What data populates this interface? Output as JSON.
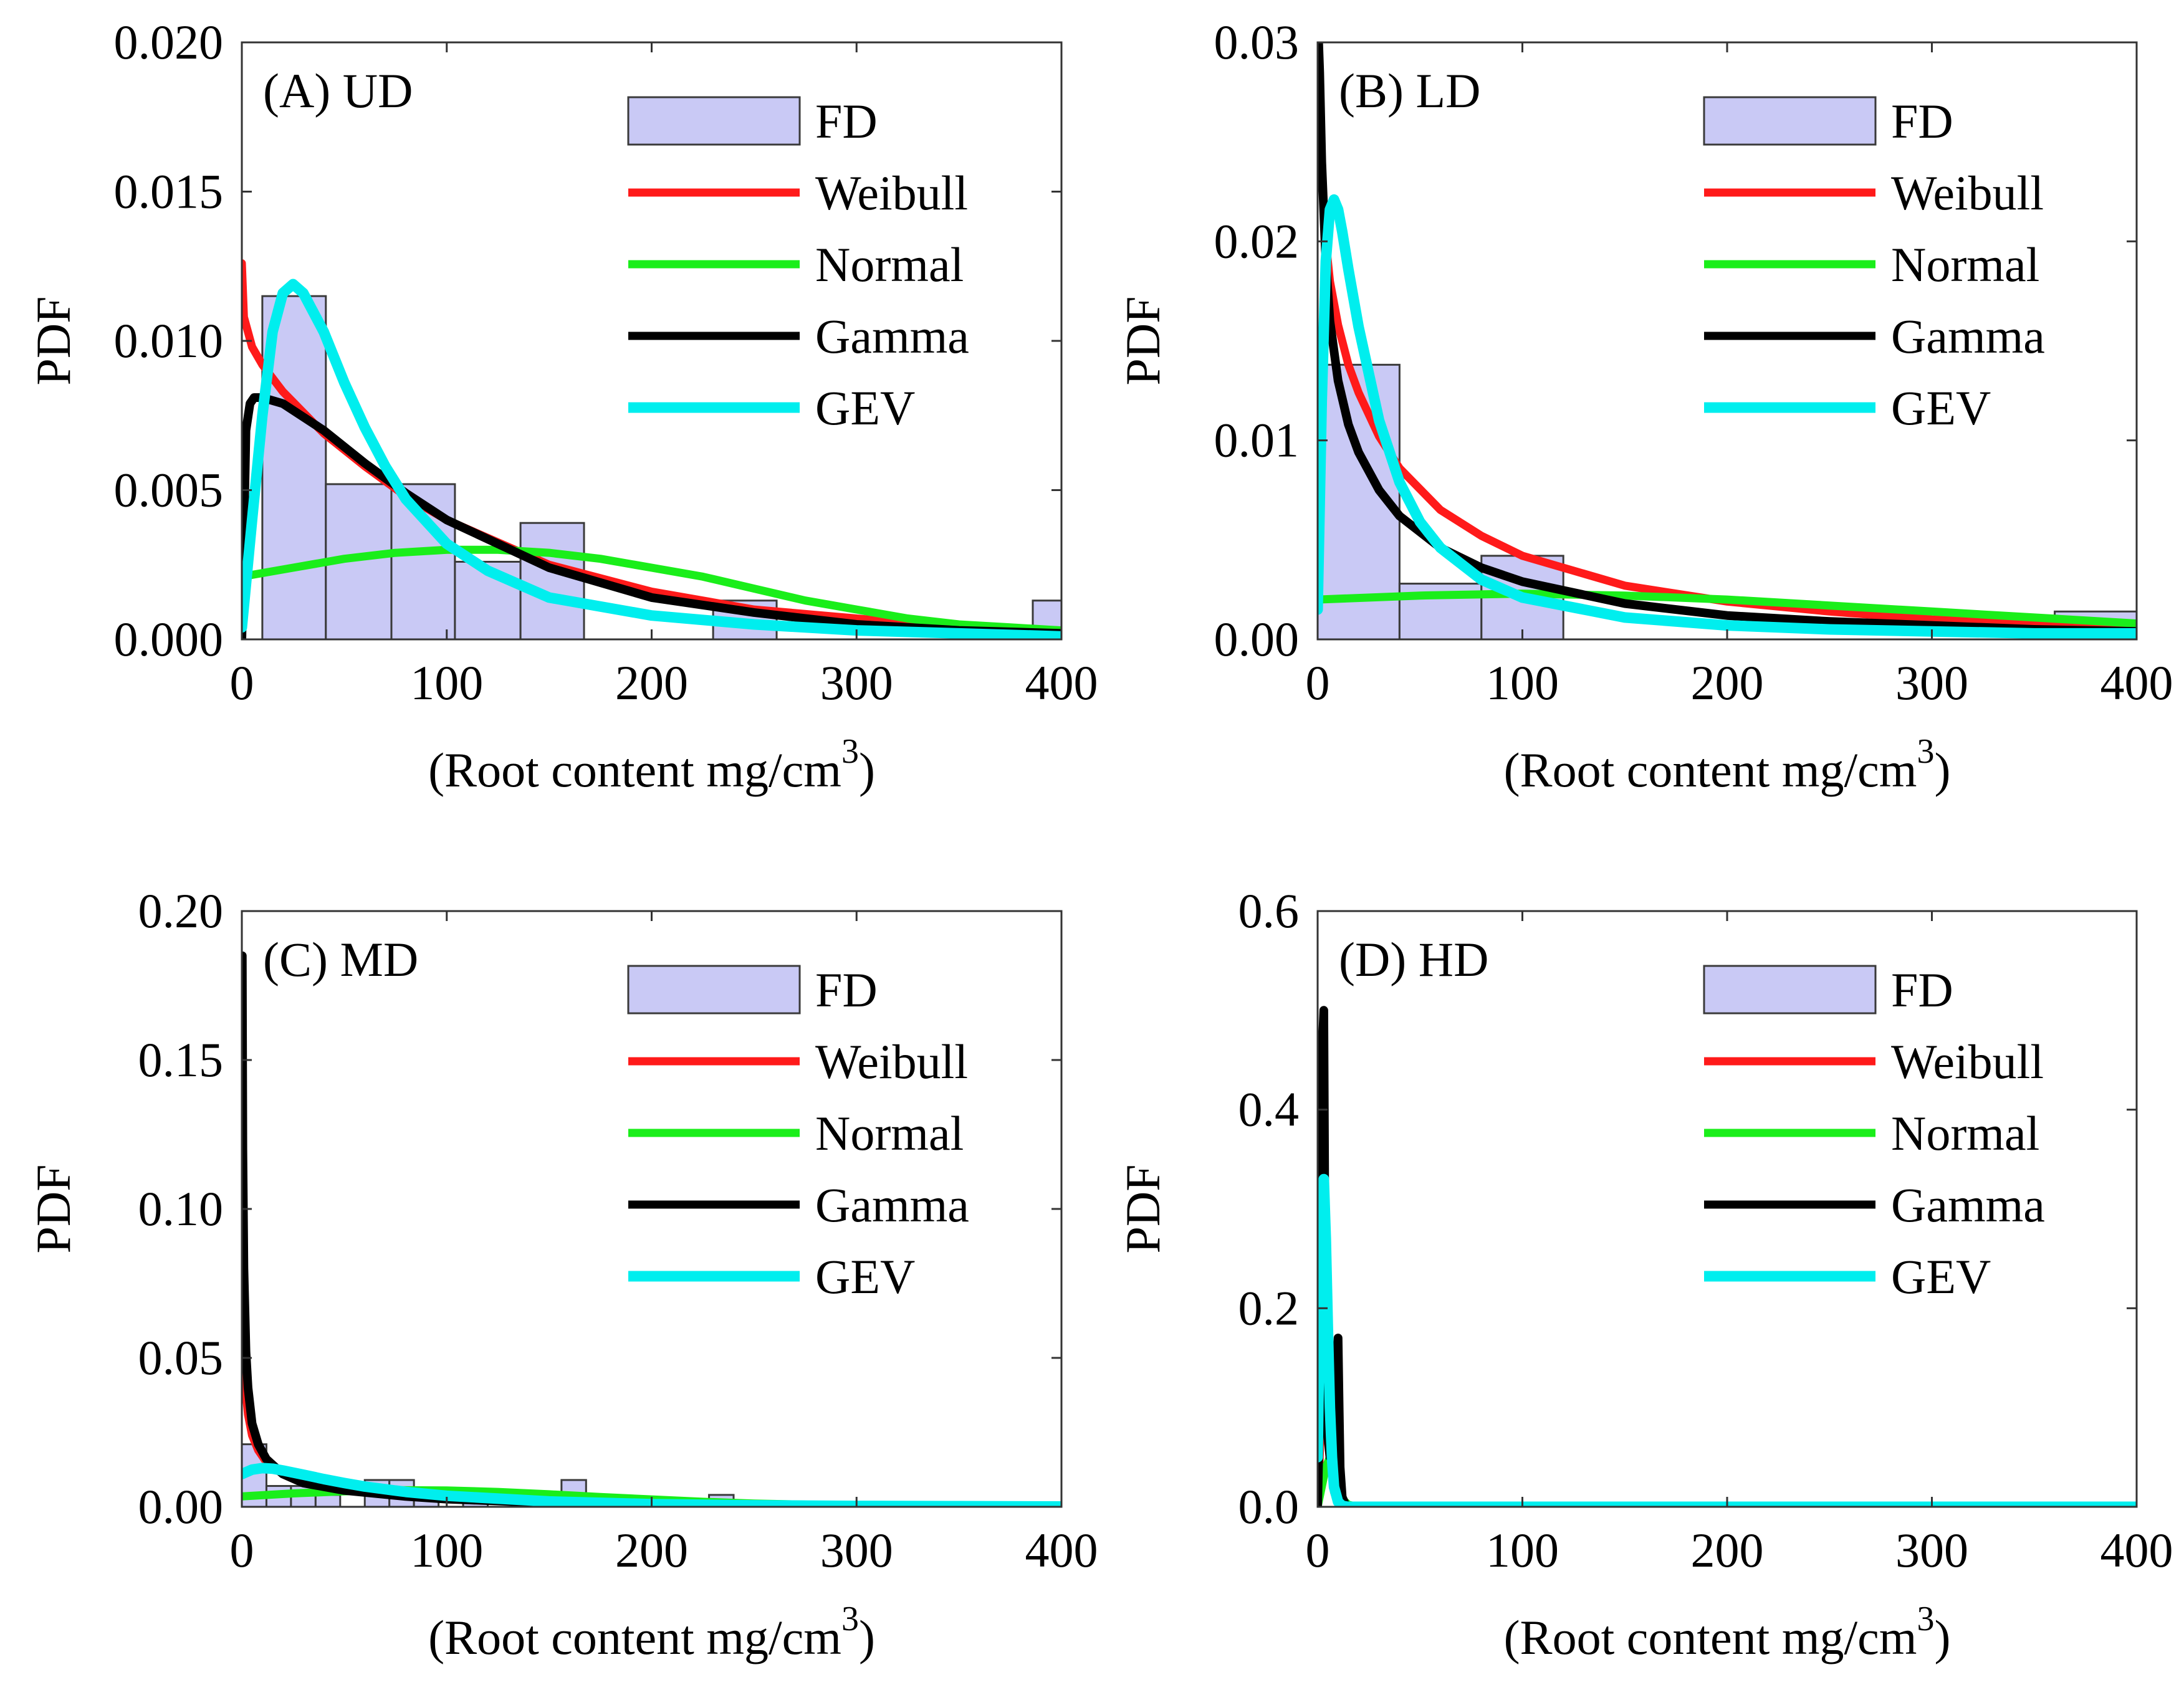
{
  "figure": {
    "legend_labels": [
      "FD",
      "Weibull",
      "Normal",
      "Gamma",
      "GEV"
    ],
    "colors": {
      "FD_fill": "#c9c9f5",
      "FD_edge": "#3a3a3a",
      "Weibull": "#ff1a1a",
      "Normal": "#1aee1a",
      "Gamma": "#000000",
      "GEV": "#00eeee"
    }
  },
  "chart_data": [
    {
      "type": "bar",
      "panel": "(A) UD",
      "title": "(A) UD",
      "xlabel": "(Root content mg/cm",
      "xlabel_superscript": "3",
      "xlabel_close": ")",
      "ylabel": "PDF",
      "xlim": [
        0,
        400
      ],
      "ylim": [
        0,
        0.02
      ],
      "xticks": [
        0,
        100,
        200,
        300,
        400
      ],
      "xtick_labels": [
        "0",
        "100",
        "200",
        "300",
        "400"
      ],
      "yticks": [
        0,
        0.005,
        0.01,
        0.015,
        0.02
      ],
      "ytick_labels": [
        "0.000",
        "0.005",
        "0.010",
        "0.015",
        "0.020"
      ],
      "grid": false,
      "legend_position": "top-right",
      "histogram": {
        "name": "FD",
        "bins": [
          [
            10,
            41,
            0.0115
          ],
          [
            41,
            73,
            0.0052
          ],
          [
            73,
            104,
            0.0052
          ],
          [
            104,
            136,
            0.0026
          ],
          [
            136,
            167,
            0.0039
          ],
          [
            167,
            198,
            0.0
          ],
          [
            198,
            230,
            0.0
          ],
          [
            230,
            261,
            0.0013
          ],
          [
            261,
            292,
            0.0
          ],
          [
            292,
            324,
            0.0
          ],
          [
            324,
            355,
            0.0
          ],
          [
            355,
            386,
            0.0
          ],
          [
            386,
            418,
            0.0013
          ]
        ]
      },
      "series": [
        {
          "name": "Weibull",
          "x": [
            0,
            1,
            5,
            10,
            20,
            40,
            60,
            80,
            100,
            150,
            200,
            250,
            300,
            350,
            400
          ],
          "y": [
            0.0126,
            0.0108,
            0.0098,
            0.0092,
            0.0083,
            0.0069,
            0.0058,
            0.0048,
            0.004,
            0.0025,
            0.0016,
            0.001,
            0.0007,
            0.0004,
            0.0003
          ]
        },
        {
          "name": "Normal",
          "x": [
            0,
            25,
            50,
            75,
            100,
            125,
            150,
            175,
            200,
            225,
            250,
            275,
            300,
            325,
            350,
            375,
            400
          ],
          "y": [
            0.0021,
            0.0024,
            0.0027,
            0.0029,
            0.003,
            0.003,
            0.0029,
            0.0027,
            0.0024,
            0.0021,
            0.0017,
            0.0013,
            0.001,
            0.0007,
            0.0005,
            0.0004,
            0.0003
          ]
        },
        {
          "name": "Gamma",
          "x": [
            0,
            2,
            4,
            6,
            10,
            20,
            40,
            60,
            80,
            100,
            150,
            200,
            250,
            300,
            350,
            400
          ],
          "y": [
            0.0,
            0.007,
            0.0079,
            0.0081,
            0.0081,
            0.0079,
            0.007,
            0.0059,
            0.0049,
            0.004,
            0.0024,
            0.0014,
            0.0009,
            0.0005,
            0.0003,
            0.0002
          ]
        },
        {
          "name": "GEV",
          "x": [
            0,
            5,
            10,
            15,
            20,
            25,
            30,
            40,
            50,
            60,
            70,
            80,
            100,
            120,
            150,
            200,
            250,
            300,
            350,
            400
          ],
          "y": [
            0.0004,
            0.004,
            0.0075,
            0.0103,
            0.0116,
            0.0119,
            0.0116,
            0.0103,
            0.0086,
            0.0071,
            0.0058,
            0.0047,
            0.0032,
            0.0023,
            0.0014,
            0.0008,
            0.0005,
            0.0003,
            0.0002,
            0.0001
          ]
        }
      ]
    },
    {
      "type": "bar",
      "panel": "(B) LD",
      "title": "(B) LD",
      "xlabel": "(Root content mg/cm",
      "xlabel_superscript": "3",
      "xlabel_close": ")",
      "ylabel": "PDF",
      "xlim": [
        0,
        400
      ],
      "ylim": [
        0,
        0.03
      ],
      "xticks": [
        0,
        100,
        200,
        300,
        400
      ],
      "xtick_labels": [
        "0",
        "100",
        "200",
        "300",
        "400"
      ],
      "yticks": [
        0,
        0.01,
        0.02,
        0.03
      ],
      "ytick_labels": [
        "0.00",
        "0.01",
        "0.02",
        "0.03"
      ],
      "grid": false,
      "legend_position": "top-right",
      "histogram": {
        "name": "FD",
        "bins": [
          [
            0,
            40,
            0.0138
          ],
          [
            40,
            80,
            0.0028
          ],
          [
            80,
            120,
            0.0042
          ],
          [
            120,
            160,
            0.0
          ],
          [
            160,
            200,
            0.0
          ],
          [
            200,
            240,
            0.0
          ],
          [
            240,
            280,
            0.0
          ],
          [
            280,
            320,
            0.0
          ],
          [
            320,
            360,
            0.0
          ],
          [
            360,
            400,
            0.0014
          ]
        ]
      },
      "series": [
        {
          "name": "Weibull",
          "x": [
            0.5,
            1,
            2,
            4,
            6,
            10,
            15,
            20,
            30,
            40,
            60,
            80,
            100,
            150,
            200,
            250,
            300,
            350,
            400
          ],
          "y": [
            0.03,
            0.027,
            0.0235,
            0.02,
            0.018,
            0.0158,
            0.0138,
            0.0124,
            0.0102,
            0.0086,
            0.0065,
            0.0052,
            0.0042,
            0.0027,
            0.0019,
            0.0014,
            0.001,
            0.0008,
            0.0006
          ]
        },
        {
          "name": "Normal",
          "x": [
            0,
            50,
            100,
            150,
            200,
            250,
            300,
            350,
            400
          ],
          "y": [
            0.002,
            0.0022,
            0.0023,
            0.0022,
            0.002,
            0.0017,
            0.0014,
            0.0011,
            0.0008
          ]
        },
        {
          "name": "Gamma",
          "x": [
            0.5,
            1,
            2,
            4,
            6,
            10,
            15,
            20,
            30,
            40,
            60,
            80,
            100,
            150,
            200,
            250,
            300,
            350,
            400
          ],
          "y": [
            0.03,
            0.0285,
            0.024,
            0.019,
            0.016,
            0.013,
            0.0108,
            0.0094,
            0.0075,
            0.0062,
            0.0046,
            0.0036,
            0.0029,
            0.0018,
            0.0012,
            0.0009,
            0.0007,
            0.0005,
            0.0004
          ]
        },
        {
          "name": "GEV",
          "x": [
            0,
            2,
            4,
            6,
            8,
            10,
            12,
            15,
            20,
            30,
            40,
            50,
            60,
            80,
            100,
            150,
            200,
            250,
            300,
            350,
            400
          ],
          "y": [
            0.0015,
            0.012,
            0.019,
            0.0216,
            0.0221,
            0.0216,
            0.0205,
            0.0186,
            0.0157,
            0.011,
            0.0079,
            0.0059,
            0.0046,
            0.003,
            0.0021,
            0.0011,
            0.0007,
            0.0005,
            0.0004,
            0.0003,
            0.0003
          ]
        }
      ]
    },
    {
      "type": "bar",
      "panel": "(C) MD",
      "title": "(C) MD",
      "xlabel": "(Root content mg/cm",
      "xlabel_superscript": "3",
      "xlabel_close": ")",
      "ylabel": "PDF",
      "xlim": [
        0,
        400
      ],
      "ylim": [
        0,
        0.2
      ],
      "xticks": [
        0,
        100,
        200,
        300,
        400
      ],
      "xtick_labels": [
        "0",
        "100",
        "200",
        "300",
        "400"
      ],
      "yticks": [
        0,
        0.05,
        0.1,
        0.15,
        0.2
      ],
      "ytick_labels": [
        "0.00",
        "0.05",
        "0.10",
        "0.15",
        "0.20"
      ],
      "grid": false,
      "legend_position": "top-right",
      "histogram": {
        "name": "FD",
        "bins": [
          [
            0,
            12,
            0.021
          ],
          [
            12,
            24,
            0.007
          ],
          [
            24,
            36,
            0.007
          ],
          [
            36,
            48,
            0.004
          ],
          [
            60,
            72,
            0.009
          ],
          [
            72,
            84,
            0.009
          ],
          [
            84,
            96,
            0.004
          ],
          [
            108,
            120,
            0.004
          ],
          [
            156,
            168,
            0.009
          ],
          [
            228,
            240,
            0.004
          ]
        ]
      },
      "series": [
        {
          "name": "Weibull",
          "x": [
            0.2,
            0.5,
            1,
            2,
            3,
            5,
            8,
            12,
            20,
            30,
            50,
            80,
            100,
            150,
            200,
            250,
            300,
            350,
            400
          ],
          "y": [
            0.095,
            0.07,
            0.052,
            0.038,
            0.031,
            0.024,
            0.019,
            0.015,
            0.011,
            0.009,
            0.006,
            0.004,
            0.003,
            0.0015,
            0.0008,
            0.0004,
            0.0002,
            0.0001,
            0.0001
          ]
        },
        {
          "name": "Normal",
          "x": [
            0,
            25,
            50,
            75,
            100,
            125,
            150,
            175,
            200,
            225,
            250,
            300,
            350,
            400
          ],
          "y": [
            0.0035,
            0.0045,
            0.0052,
            0.0056,
            0.0055,
            0.005,
            0.0042,
            0.0033,
            0.0025,
            0.0017,
            0.0011,
            0.0004,
            0.0001,
            0.0
          ]
        },
        {
          "name": "Gamma",
          "x": [
            0.2,
            0.5,
            1,
            2,
            3,
            5,
            8,
            12,
            20,
            30,
            50,
            80,
            100,
            150,
            200,
            250,
            300,
            350,
            400
          ],
          "y": [
            0.185,
            0.12,
            0.08,
            0.052,
            0.04,
            0.028,
            0.021,
            0.016,
            0.011,
            0.008,
            0.0055,
            0.0035,
            0.0026,
            0.0013,
            0.0007,
            0.0004,
            0.0002,
            0.0001,
            0.0001
          ]
        },
        {
          "name": "GEV",
          "x": [
            0,
            5,
            10,
            15,
            20,
            30,
            40,
            50,
            60,
            80,
            100,
            150,
            200,
            250,
            300,
            350,
            400
          ],
          "y": [
            0.011,
            0.0125,
            0.013,
            0.0128,
            0.0122,
            0.0108,
            0.0093,
            0.008,
            0.0068,
            0.005,
            0.0037,
            0.0018,
            0.0009,
            0.0005,
            0.0003,
            0.0002,
            0.0001
          ]
        }
      ]
    },
    {
      "type": "bar",
      "panel": "(D) HD",
      "title": "(D) HD",
      "xlabel": "(Root content mg/cm",
      "xlabel_superscript": "3",
      "xlabel_close": ")",
      "ylabel": "PDF",
      "xlim": [
        0,
        400
      ],
      "ylim": [
        0,
        0.6
      ],
      "xticks": [
        0,
        100,
        200,
        300,
        400
      ],
      "xtick_labels": [
        "0",
        "100",
        "200",
        "300",
        "400"
      ],
      "yticks": [
        0,
        0.2,
        0.4,
        0.6
      ],
      "ytick_labels": [
        "0.0",
        "0.2",
        "0.4",
        "0.6"
      ],
      "grid": false,
      "legend_position": "top-right",
      "histogram": {
        "name": "FD",
        "bins": []
      },
      "series": [
        {
          "name": "Weibull",
          "x": [
            0,
            1,
            2,
            3,
            4,
            5,
            6,
            7,
            8,
            10,
            12,
            15,
            20,
            50,
            100,
            400
          ],
          "y": [
            0.0,
            0.05,
            0.12,
            0.18,
            0.17,
            0.12,
            0.07,
            0.035,
            0.015,
            0.003,
            0.0,
            0.0,
            0.0,
            0.0,
            0.0,
            0.0
          ]
        },
        {
          "name": "Normal",
          "x": [
            0,
            2,
            4,
            6,
            8,
            10,
            12,
            15,
            20,
            100,
            400
          ],
          "y": [
            0.0,
            0.02,
            0.04,
            0.05,
            0.04,
            0.02,
            0.008,
            0.002,
            0.0,
            0.0,
            0.0
          ]
        },
        {
          "name": "Gamma",
          "x": [
            0,
            1,
            2,
            3,
            3.5,
            4,
            5,
            6,
            7,
            8,
            9,
            10,
            10.5,
            11,
            12,
            14,
            20,
            400
          ],
          "y": [
            0.0,
            0.1,
            0.45,
            0.5,
            0.3,
            0.14,
            0.07,
            0.05,
            0.06,
            0.09,
            0.13,
            0.17,
            0.1,
            0.04,
            0.01,
            0.0,
            0.0,
            0.0
          ]
        },
        {
          "name": "GEV",
          "x": [
            0,
            1,
            2,
            3,
            4,
            5,
            6,
            7,
            8,
            10,
            12,
            15,
            20,
            50,
            100,
            200,
            300,
            400
          ],
          "y": [
            0.05,
            0.2,
            0.31,
            0.33,
            0.27,
            0.18,
            0.1,
            0.05,
            0.02,
            0.005,
            0.001,
            0.0,
            0.0,
            0.0,
            0.0,
            0.0,
            0.0,
            0.0
          ]
        }
      ]
    }
  ]
}
